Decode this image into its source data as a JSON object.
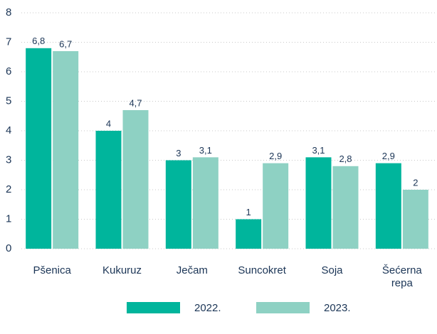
{
  "chart_data": {
    "type": "bar",
    "categories": [
      "Pšenica",
      "Kukuruz",
      "Ječam",
      "Suncokret",
      "Soja",
      "Šećerna repa"
    ],
    "series": [
      {
        "name": "2022.",
        "color": "#00b59c",
        "values": [
          6.8,
          4,
          3,
          1,
          3.1,
          2.9
        ],
        "value_labels": [
          "6,8",
          "4",
          "3",
          "1",
          "3,1",
          "2,9"
        ]
      },
      {
        "name": "2023.",
        "color": "#8ed1c3",
        "values": [
          6.7,
          4.7,
          3.1,
          2.9,
          2.8,
          2
        ],
        "value_labels": [
          "6,7",
          "4,7",
          "3,1",
          "2,9",
          "2,8",
          "2"
        ]
      }
    ],
    "ylim": [
      0,
      8
    ],
    "yticks": [
      0,
      1,
      2,
      3,
      4,
      5,
      6,
      7,
      8
    ],
    "grid": true
  }
}
